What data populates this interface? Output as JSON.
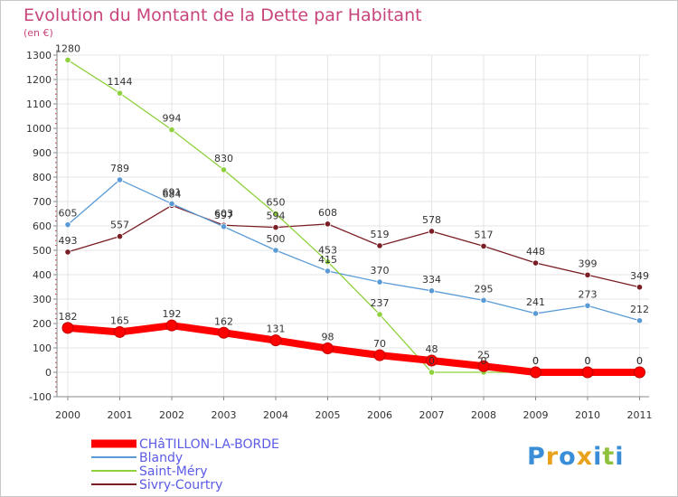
{
  "chart_data": {
    "type": "line",
    "title": "Evolution du Montant de la Dette par Habitant",
    "unit_label": "(en €)",
    "x": [
      "2000",
      "2001",
      "2002",
      "2003",
      "2004",
      "2005",
      "2006",
      "2007",
      "2008",
      "2009",
      "2010",
      "2011"
    ],
    "ylim": [
      -100,
      1300
    ],
    "yticks": [
      -100,
      0,
      100,
      200,
      300,
      400,
      500,
      600,
      700,
      800,
      900,
      1000,
      1100,
      1200,
      1300
    ],
    "grid": true,
    "legend_position": "bottom-left",
    "series": [
      {
        "name": "CHâTILLON-LA-BORDE",
        "color": "#ff0000",
        "values": [
          182,
          165,
          192,
          162,
          131,
          98,
          70,
          48,
          25,
          0,
          0,
          0
        ],
        "labels": [
          "182",
          "165",
          "192",
          "162",
          "131",
          "98",
          "70",
          "48",
          "25",
          "0",
          "0",
          "0"
        ]
      },
      {
        "name": "Blandy",
        "color": "#5a9bd6",
        "values": [
          605,
          789,
          691,
          597,
          500,
          415,
          370,
          334,
          295,
          241,
          273,
          212
        ],
        "labels": [
          "605",
          "789",
          "691",
          "597",
          "500",
          "415",
          "370",
          "334",
          "295",
          "241",
          "273",
          "212"
        ]
      },
      {
        "name": "Saint-Méry",
        "color": "#8ed13c",
        "values": [
          1280,
          1144,
          994,
          830,
          650,
          453,
          237,
          0,
          0,
          0,
          0,
          0
        ],
        "labels": [
          "1280",
          "1144",
          "994",
          "830",
          "650",
          "453",
          "237",
          "0",
          "0",
          "0",
          "0",
          "0"
        ]
      },
      {
        "name": "Sivry-Courtry",
        "color": "#7a1e25",
        "values": [
          493,
          557,
          684,
          603,
          594,
          608,
          519,
          578,
          517,
          448,
          399,
          349
        ],
        "labels": [
          "493",
          "557",
          "684",
          "603",
          "594",
          "608",
          "519",
          "578",
          "517",
          "448",
          "399",
          "349"
        ]
      }
    ]
  },
  "logo": {
    "letters": [
      "P",
      "r",
      "o",
      "x",
      "i",
      "t",
      "i"
    ],
    "colors": [
      "#3a8ed8",
      "#e8a21c",
      "#3a8ed8",
      "#e8a21c",
      "#3a8ed8",
      "#8fc23c",
      "#3a8ed8"
    ]
  }
}
